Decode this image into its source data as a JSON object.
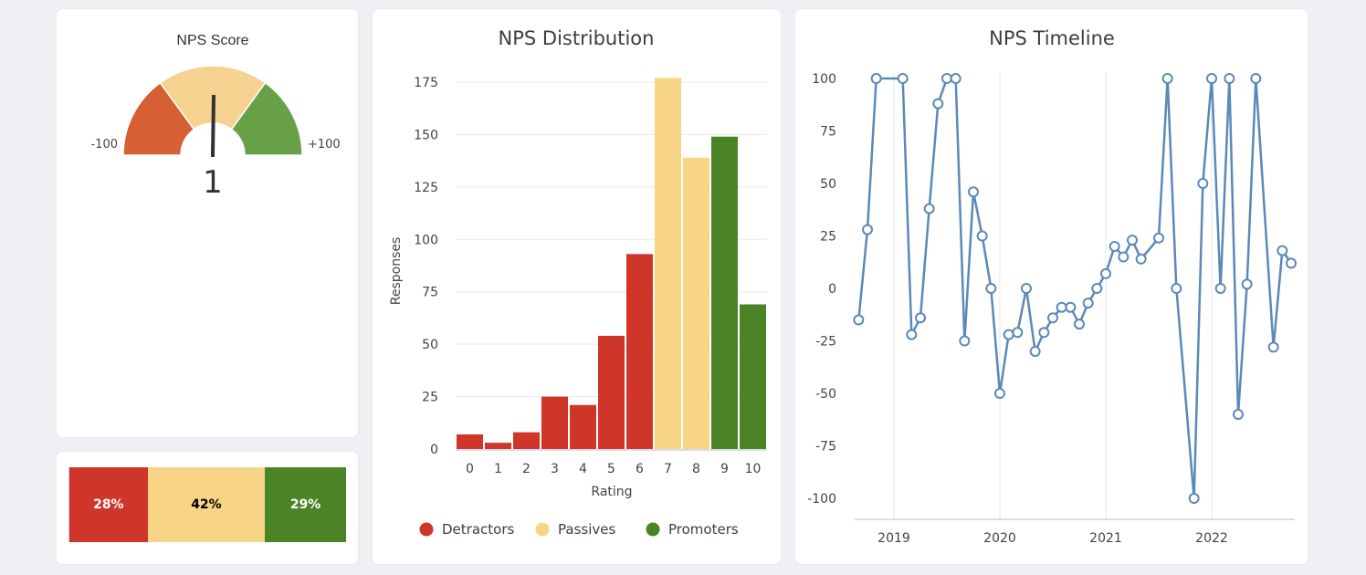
{
  "colors": {
    "detractor": "#d0352a",
    "passive": "#f8d486",
    "promoter": "#4b8427",
    "gauge_red": "#d66034",
    "gauge_yellow": "#f5d28f",
    "gauge_green": "#68a048",
    "line": "#5b89b8",
    "needle": "#333333"
  },
  "score": {
    "title": "NPS Score",
    "value": 1,
    "value_label": "1",
    "min": -100,
    "max": 100,
    "min_label": "-100",
    "max_label": "+100",
    "bands": [
      {
        "name": "detractor-band",
        "from": -100,
        "to": -40,
        "color_key": "gauge_red"
      },
      {
        "name": "passive-band",
        "from": -40,
        "to": 40,
        "color_key": "gauge_yellow"
      },
      {
        "name": "promoter-band",
        "from": 40,
        "to": 100,
        "color_key": "gauge_green"
      }
    ]
  },
  "split": {
    "segments": [
      {
        "name": "detractors",
        "label": "28%",
        "value": 28,
        "color_key": "detractor",
        "text_color": "#ffffff"
      },
      {
        "name": "passives",
        "label": "42%",
        "value": 42,
        "color_key": "passive",
        "text_color": "#000000"
      },
      {
        "name": "promoters",
        "label": "29%",
        "value": 29,
        "color_key": "promoter",
        "text_color": "#ffffff"
      }
    ]
  },
  "chart_data": [
    {
      "type": "bar",
      "title": "NPS Distribution",
      "xlabel": "Rating",
      "ylabel": "Responses",
      "ylim": [
        0,
        175
      ],
      "yticks": [
        0,
        25,
        50,
        75,
        100,
        125,
        150,
        175
      ],
      "grid": true,
      "legend_position": "bottom",
      "categories": [
        "0",
        "1",
        "2",
        "3",
        "4",
        "5",
        "6",
        "7",
        "8",
        "9",
        "10"
      ],
      "values": [
        7,
        3,
        8,
        25,
        21,
        54,
        93,
        177,
        139,
        149,
        69
      ],
      "groups": [
        "Detractors",
        "Detractors",
        "Detractors",
        "Detractors",
        "Detractors",
        "Detractors",
        "Detractors",
        "Passives",
        "Passives",
        "Promoters",
        "Promoters"
      ],
      "legend": [
        {
          "label": "Detractors",
          "color_key": "detractor"
        },
        {
          "label": "Passives",
          "color_key": "passive"
        },
        {
          "label": "Promoters",
          "color_key": "promoter"
        }
      ]
    },
    {
      "type": "line",
      "title": "NPS Timeline",
      "xlabel": "",
      "ylabel": "",
      "ylim": [
        -100,
        100
      ],
      "yticks": [
        -100,
        -75,
        -50,
        -25,
        0,
        25,
        50,
        75,
        100
      ],
      "xticks": [
        "2019",
        "2020",
        "2021",
        "2022"
      ],
      "x_range": [
        "2018-08",
        "2022-11"
      ],
      "grid": true,
      "series": [
        {
          "name": "NPS",
          "points": [
            {
              "x": "2018-09",
              "y": -15
            },
            {
              "x": "2018-10",
              "y": 28
            },
            {
              "x": "2018-11",
              "y": 100
            },
            {
              "x": "2019-02",
              "y": 100
            },
            {
              "x": "2019-03",
              "y": -22
            },
            {
              "x": "2019-04",
              "y": -14
            },
            {
              "x": "2019-05",
              "y": 38
            },
            {
              "x": "2019-06",
              "y": 88
            },
            {
              "x": "2019-07",
              "y": 100
            },
            {
              "x": "2019-08",
              "y": 100
            },
            {
              "x": "2019-09",
              "y": -25
            },
            {
              "x": "2019-10",
              "y": 46
            },
            {
              "x": "2019-11",
              "y": 25
            },
            {
              "x": "2019-12",
              "y": 0
            },
            {
              "x": "2020-01",
              "y": -50
            },
            {
              "x": "2020-02",
              "y": -22
            },
            {
              "x": "2020-03",
              "y": -21
            },
            {
              "x": "2020-04",
              "y": 0
            },
            {
              "x": "2020-05",
              "y": -30
            },
            {
              "x": "2020-06",
              "y": -21
            },
            {
              "x": "2020-07",
              "y": -14
            },
            {
              "x": "2020-08",
              "y": -9
            },
            {
              "x": "2020-09",
              "y": -9
            },
            {
              "x": "2020-10",
              "y": -17
            },
            {
              "x": "2020-11",
              "y": -7
            },
            {
              "x": "2020-12",
              "y": 0
            },
            {
              "x": "2021-01",
              "y": 7
            },
            {
              "x": "2021-02",
              "y": 20
            },
            {
              "x": "2021-03",
              "y": 15
            },
            {
              "x": "2021-04",
              "y": 23
            },
            {
              "x": "2021-05",
              "y": 14
            },
            {
              "x": "2021-07",
              "y": 24
            },
            {
              "x": "2021-08",
              "y": 100
            },
            {
              "x": "2021-09",
              "y": 0
            },
            {
              "x": "2021-11",
              "y": -100
            },
            {
              "x": "2021-12",
              "y": 50
            },
            {
              "x": "2022-01",
              "y": 100
            },
            {
              "x": "2022-02",
              "y": 0
            },
            {
              "x": "2022-03",
              "y": 100
            },
            {
              "x": "2022-04",
              "y": -60
            },
            {
              "x": "2022-05",
              "y": 2
            },
            {
              "x": "2022-06",
              "y": 100
            },
            {
              "x": "2022-08",
              "y": -28
            },
            {
              "x": "2022-09",
              "y": 18
            },
            {
              "x": "2022-10",
              "y": 12
            }
          ]
        }
      ]
    }
  ]
}
